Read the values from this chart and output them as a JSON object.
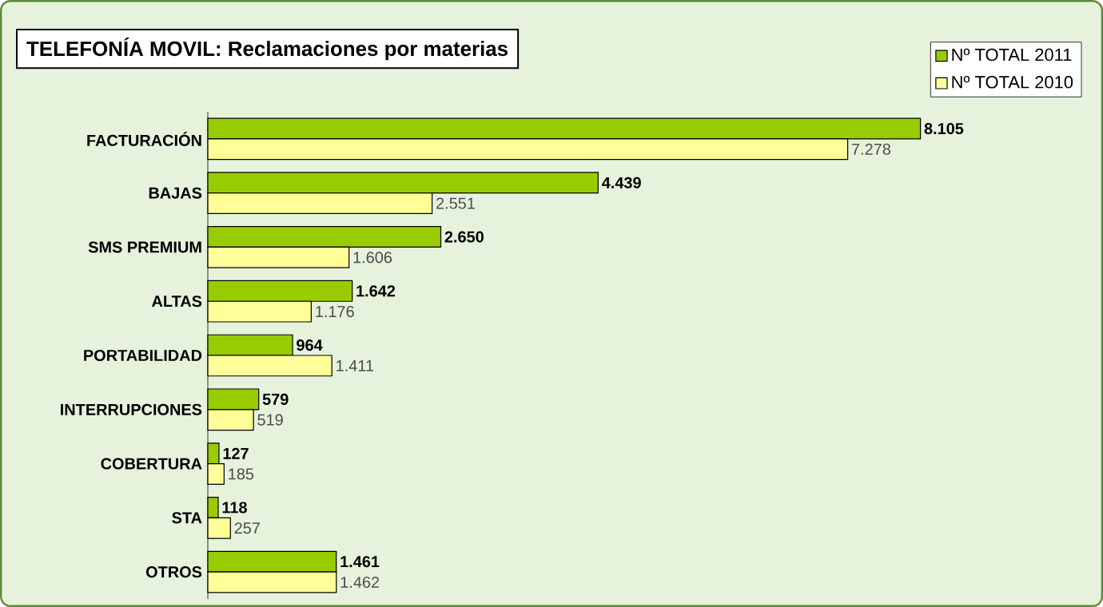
{
  "chart_data": {
    "type": "bar",
    "orientation": "horizontal",
    "title": "TELEFONÍA MOVIL: Reclamaciones por materias",
    "categories": [
      "FACTURACIÓN",
      "BAJAS",
      "SMS PREMIUM",
      "ALTAS",
      "PORTABILIDAD",
      "INTERRUPCIONES",
      "COBERTURA",
      "STA",
      "OTROS"
    ],
    "series": [
      {
        "name": "Nº TOTAL 2011",
        "color": "#99cc00",
        "values": [
          8105,
          4439,
          2650,
          1642,
          964,
          579,
          127,
          118,
          1461
        ],
        "value_labels": [
          "8.105",
          "4.439",
          "2.650",
          "1.642",
          "964",
          "579",
          "127",
          "118",
          "1.461"
        ]
      },
      {
        "name": "Nº TOTAL 2010",
        "color": "#ffff99",
        "values": [
          7278,
          2551,
          1606,
          1176,
          1411,
          519,
          185,
          257,
          1462
        ],
        "value_labels": [
          "7.278",
          "2.551",
          "1.606",
          "1.176",
          "1.411",
          "519",
          "185",
          "257",
          "1.462"
        ]
      }
    ],
    "legend": "top right"
  }
}
